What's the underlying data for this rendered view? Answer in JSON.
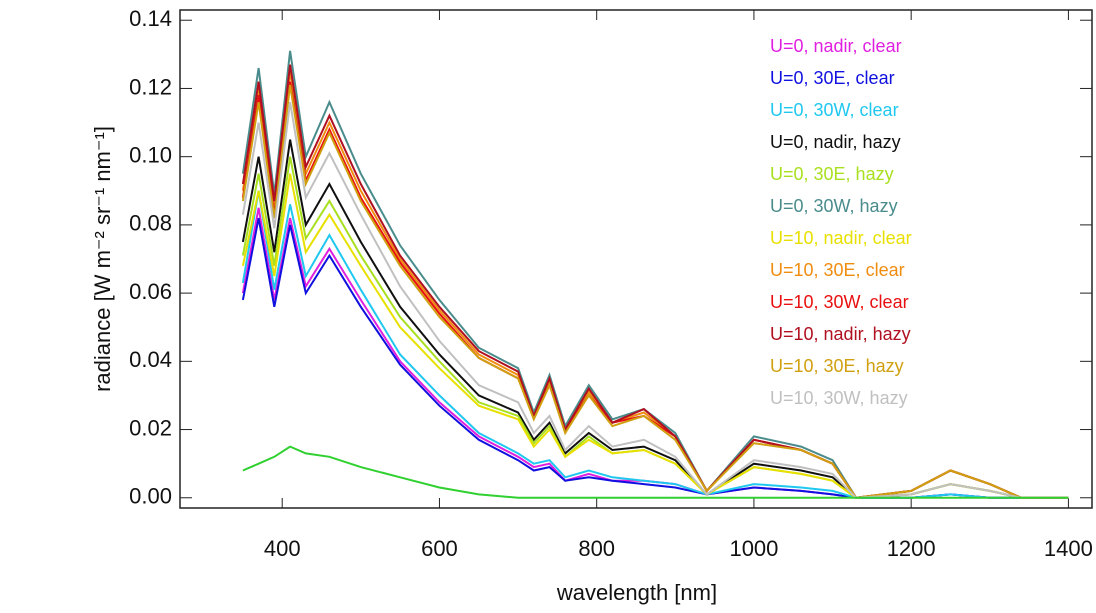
{
  "chart_data": {
    "type": "line",
    "xlabel": "wavelength [nm]",
    "ylabel": "radiance [W m⁻² sr⁻¹ nm⁻¹]",
    "x": [
      350,
      370,
      390,
      410,
      430,
      460,
      500,
      550,
      600,
      650,
      700,
      720,
      740,
      760,
      790,
      820,
      860,
      900,
      940,
      1000,
      1060,
      1100,
      1130,
      1200,
      1250,
      1300,
      1340,
      1400
    ],
    "xlim": [
      270,
      1430
    ],
    "xticks": [
      400,
      600,
      800,
      1000,
      1200,
      1400
    ],
    "ylim": [
      -0.003,
      0.143
    ],
    "yticks": [
      {
        "value": 0,
        "label": "0.00"
      },
      0.02,
      0.04,
      0.06,
      0.08,
      {
        "value": 0.1,
        "label": "0.10"
      },
      0.12,
      0.14
    ],
    "legend": "upper right",
    "series": [
      {
        "name": "U=0, nadir, clear",
        "color": "#e020e0",
        "values": [
          0.06,
          0.085,
          0.058,
          0.082,
          0.062,
          0.073,
          0.058,
          0.04,
          0.028,
          0.018,
          0.012,
          0.009,
          0.01,
          0.005,
          0.007,
          0.005,
          0.005,
          0.004,
          0.001,
          0.003,
          0.002,
          0.001,
          0.0,
          0.0,
          0.001,
          0.0,
          0.0,
          0.0
        ]
      },
      {
        "name": "U=0, 30E, clear",
        "color": "#1010e0",
        "values": [
          0.058,
          0.082,
          0.056,
          0.08,
          0.06,
          0.071,
          0.056,
          0.039,
          0.027,
          0.017,
          0.011,
          0.008,
          0.009,
          0.005,
          0.006,
          0.005,
          0.004,
          0.003,
          0.001,
          0.003,
          0.002,
          0.001,
          0.0,
          0.0,
          0.001,
          0.0,
          0.0,
          0.0
        ]
      },
      {
        "name": "U=0, 30W, clear",
        "color": "#20c8f0",
        "values": [
          0.063,
          0.09,
          0.061,
          0.086,
          0.065,
          0.077,
          0.061,
          0.042,
          0.03,
          0.019,
          0.013,
          0.01,
          0.011,
          0.006,
          0.008,
          0.006,
          0.005,
          0.004,
          0.001,
          0.004,
          0.003,
          0.002,
          0.0,
          0.0,
          0.001,
          0.0,
          0.0,
          0.0
        ]
      },
      {
        "name": "U=0, nadir, hazy",
        "color": "#101010",
        "values": [
          0.075,
          0.1,
          0.072,
          0.105,
          0.08,
          0.092,
          0.075,
          0.056,
          0.042,
          0.03,
          0.025,
          0.017,
          0.022,
          0.013,
          0.019,
          0.014,
          0.015,
          0.011,
          0.001,
          0.01,
          0.008,
          0.006,
          0.0,
          0.001,
          0.004,
          0.002,
          0.0,
          0.0
        ]
      },
      {
        "name": "U=0, 30E, hazy",
        "color": "#a8e020",
        "values": [
          0.071,
          0.095,
          0.068,
          0.1,
          0.076,
          0.087,
          0.071,
          0.053,
          0.04,
          0.028,
          0.024,
          0.016,
          0.021,
          0.012,
          0.018,
          0.013,
          0.014,
          0.01,
          0.001,
          0.009,
          0.007,
          0.005,
          0.0,
          0.001,
          0.004,
          0.002,
          0.0,
          0.0
        ]
      },
      {
        "name": "U=0, 30W, hazy",
        "color": "#4a8c8c",
        "values": [
          0.095,
          0.126,
          0.089,
          0.131,
          0.1,
          0.116,
          0.095,
          0.074,
          0.058,
          0.044,
          0.038,
          0.025,
          0.036,
          0.021,
          0.033,
          0.023,
          0.026,
          0.019,
          0.002,
          0.018,
          0.015,
          0.011,
          0.0,
          0.002,
          0.008,
          0.004,
          0.0,
          0.0
        ]
      },
      {
        "name": "U=10, nadir, clear",
        "color": "#e8e000",
        "values": [
          0.068,
          0.09,
          0.065,
          0.095,
          0.072,
          0.083,
          0.068,
          0.05,
          0.038,
          0.027,
          0.023,
          0.015,
          0.02,
          0.012,
          0.017,
          0.013,
          0.014,
          0.01,
          0.001,
          0.009,
          0.007,
          0.005,
          0.0,
          0.001,
          0.004,
          0.002,
          0.0,
          0.0
        ]
      },
      {
        "name": "U=10, 30E, clear",
        "color": "#f08c10",
        "values": [
          0.09,
          0.12,
          0.085,
          0.125,
          0.095,
          0.11,
          0.09,
          0.07,
          0.055,
          0.042,
          0.036,
          0.024,
          0.034,
          0.02,
          0.031,
          0.022,
          0.025,
          0.018,
          0.002,
          0.017,
          0.014,
          0.01,
          0.0,
          0.002,
          0.008,
          0.004,
          0.0,
          0.0
        ]
      },
      {
        "name": "U=10, 30W, clear",
        "color": "#e81010",
        "values": [
          0.088,
          0.118,
          0.083,
          0.122,
          0.093,
          0.108,
          0.088,
          0.069,
          0.054,
          0.041,
          0.035,
          0.024,
          0.033,
          0.02,
          0.03,
          0.022,
          0.024,
          0.018,
          0.002,
          0.017,
          0.014,
          0.01,
          0.0,
          0.002,
          0.008,
          0.004,
          0.0,
          0.0
        ]
      },
      {
        "name": "U=10, nadir, hazy",
        "color": "#b01020",
        "values": [
          0.092,
          0.122,
          0.087,
          0.127,
          0.097,
          0.112,
          0.092,
          0.071,
          0.056,
          0.043,
          0.037,
          0.024,
          0.035,
          0.02,
          0.032,
          0.022,
          0.026,
          0.018,
          0.002,
          0.017,
          0.014,
          0.01,
          0.0,
          0.002,
          0.008,
          0.004,
          0.0,
          0.0
        ]
      },
      {
        "name": "U=10, 30E, hazy",
        "color": "#d0a010",
        "values": [
          0.087,
          0.116,
          0.082,
          0.121,
          0.092,
          0.107,
          0.087,
          0.068,
          0.053,
          0.041,
          0.035,
          0.023,
          0.033,
          0.019,
          0.03,
          0.021,
          0.024,
          0.017,
          0.002,
          0.016,
          0.014,
          0.01,
          0.0,
          0.002,
          0.008,
          0.004,
          0.0,
          0.0
        ]
      },
      {
        "name": "U=10, 30W, hazy",
        "color": "#c0c0c0",
        "values": [
          0.083,
          0.11,
          0.079,
          0.116,
          0.088,
          0.101,
          0.083,
          0.062,
          0.046,
          0.033,
          0.028,
          0.019,
          0.024,
          0.014,
          0.021,
          0.015,
          0.017,
          0.012,
          0.001,
          0.011,
          0.009,
          0.007,
          0.0,
          0.001,
          0.004,
          0.002,
          0.0,
          0.0
        ]
      },
      {
        "color": "#30d030",
        "values": [
          0.008,
          0.01,
          0.012,
          0.015,
          0.013,
          0.012,
          0.009,
          0.006,
          0.003,
          0.001,
          0.0,
          0.0,
          0.0,
          0.0,
          0.0,
          0.0,
          0.0,
          0.0,
          0.0,
          0.0,
          0.0,
          0.0,
          0.0,
          0.0,
          0.0,
          0.0,
          0.0,
          0.0
        ]
      }
    ]
  }
}
